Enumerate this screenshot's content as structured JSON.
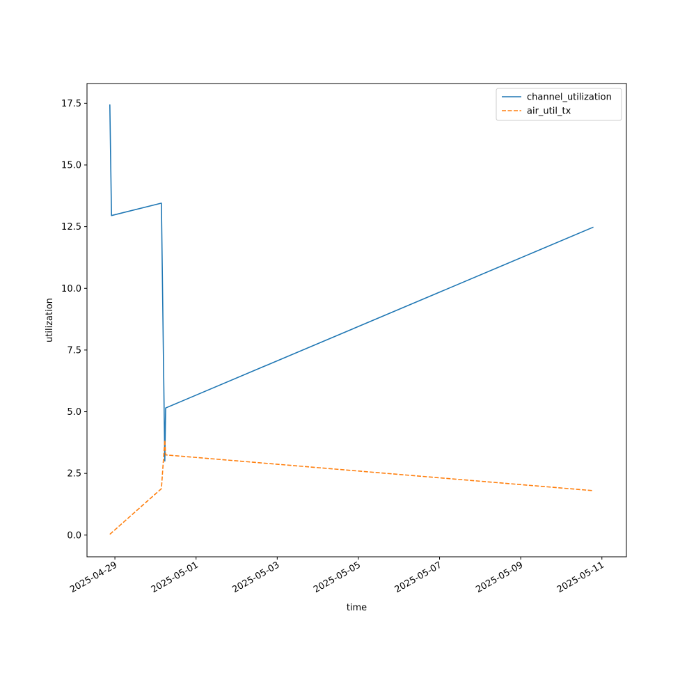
{
  "chart_data": {
    "type": "line",
    "xlabel": "time",
    "ylabel": "utilization",
    "x_ticks": [
      "2025-04-29",
      "2025-05-01",
      "2025-05-03",
      "2025-05-05",
      "2025-05-07",
      "2025-05-09",
      "2025-05-11"
    ],
    "y_ticks": [
      "0.0",
      "2.5",
      "5.0",
      "7.5",
      "10.0",
      "12.5",
      "15.0",
      "17.5"
    ],
    "xlim": [
      "2025-04-28T07:30",
      "2025-05-11T14:30"
    ],
    "ylim": [
      -0.88,
      18.3
    ],
    "legend_position": "upper right",
    "grid": false,
    "series": [
      {
        "name": "channel_utilization",
        "color": "#1f77b4",
        "style": "solid",
        "points": [
          {
            "x": "2025-04-28T21:00",
            "y": 17.45
          },
          {
            "x": "2025-04-28T22:00",
            "y": 12.95
          },
          {
            "x": "2025-04-30T03:30",
            "y": 13.45
          },
          {
            "x": "2025-04-30T05:30",
            "y": 3.0
          },
          {
            "x": "2025-04-30T06:00",
            "y": 5.15
          },
          {
            "x": "2025-05-10T19:00",
            "y": 12.48
          }
        ]
      },
      {
        "name": "air_util_tx",
        "color": "#ff7f0e",
        "style": "dashed",
        "points": [
          {
            "x": "2025-04-28T21:00",
            "y": 0.03
          },
          {
            "x": "2025-04-30T03:30",
            "y": 1.88
          },
          {
            "x": "2025-04-30T05:30",
            "y": 3.85
          },
          {
            "x": "2025-04-30T06:00",
            "y": 3.25
          },
          {
            "x": "2025-05-10T19:00",
            "y": 1.8
          }
        ]
      }
    ]
  }
}
